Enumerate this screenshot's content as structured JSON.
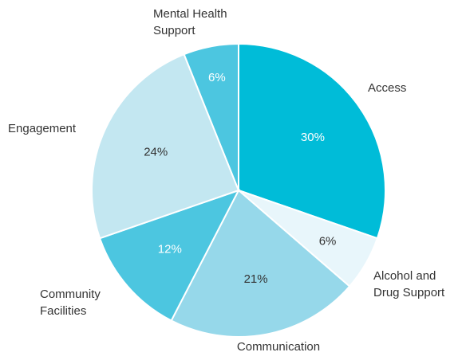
{
  "chart_data": {
    "type": "pie",
    "title": "",
    "slices": [
      {
        "label": "Access",
        "value": 30,
        "value_label": "30%",
        "color": "#00BCD8",
        "label_color": "#ffffff"
      },
      {
        "label": "Alcohol and Drug Support",
        "label_lines": [
          "Alcohol and",
          "Drug Support"
        ],
        "value": 6,
        "value_label": "6%",
        "color": "#E8F6FB",
        "label_color": "#333333"
      },
      {
        "label": "Communication",
        "value": 21,
        "value_label": "21%",
        "color": "#96D8EA",
        "label_color": "#333333"
      },
      {
        "label": "Community Facilities",
        "label_lines": [
          "Community",
          "Facilities"
        ],
        "value": 12,
        "value_label": "12%",
        "color": "#4CC6E0",
        "label_color": "#ffffff"
      },
      {
        "label": "Engagement",
        "value": 24,
        "value_label": "24%",
        "color": "#C3E7F1",
        "label_color": "#333333"
      },
      {
        "label": "Mental Health Support",
        "label_lines": [
          "Mental Health",
          "Support"
        ],
        "value": 6,
        "value_label": "6%",
        "color": "#4CC6E0",
        "label_color": "#ffffff"
      }
    ],
    "start_angle": "12 o'clock",
    "direction": "clockwise",
    "legend": "none",
    "labels": "outside"
  }
}
